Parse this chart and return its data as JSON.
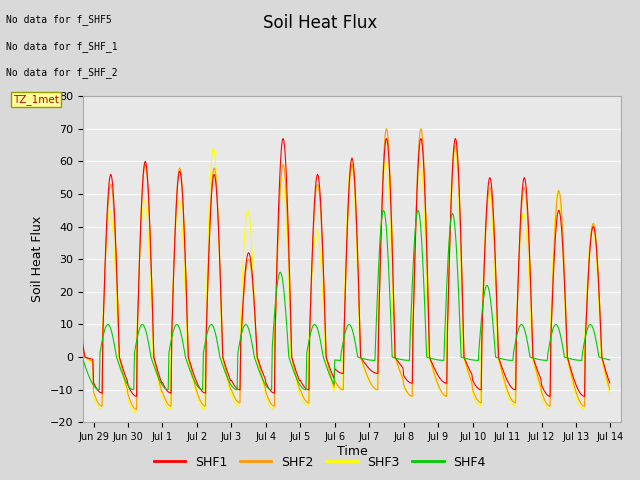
{
  "title": "Soil Heat Flux",
  "ylabel": "Soil Heat Flux",
  "xlabel": "Time",
  "ylim": [
    -20,
    80
  ],
  "shf1_color": "#ff0000",
  "shf2_color": "#ff9900",
  "shf3_color": "#ffff00",
  "shf4_color": "#00cc00",
  "legend_labels": [
    "SHF1",
    "SHF2",
    "SHF3",
    "SHF4"
  ],
  "annotations": [
    "No data for f_SHF5",
    "No data for f_SHF_1",
    "No data for f_SHF_2"
  ],
  "tz_label": "TZ_1met",
  "x_tick_labels": [
    "Jun 29",
    "Jun 30",
    "Jul 1",
    "Jul 2",
    "Jul 3",
    "Jul 4",
    "Jul 5",
    "Jul 6",
    "Jul 7",
    "Jul 8",
    "Jul 9",
    "Jul 10",
    "Jul 11",
    "Jul 12",
    "Jul 13",
    "Jul 14"
  ],
  "bg_color": "#d9d9d9",
  "plot_bg_color": "#e8e8e8",
  "yticks": [
    -20,
    -10,
    0,
    10,
    20,
    30,
    40,
    50,
    60,
    70,
    80
  ]
}
